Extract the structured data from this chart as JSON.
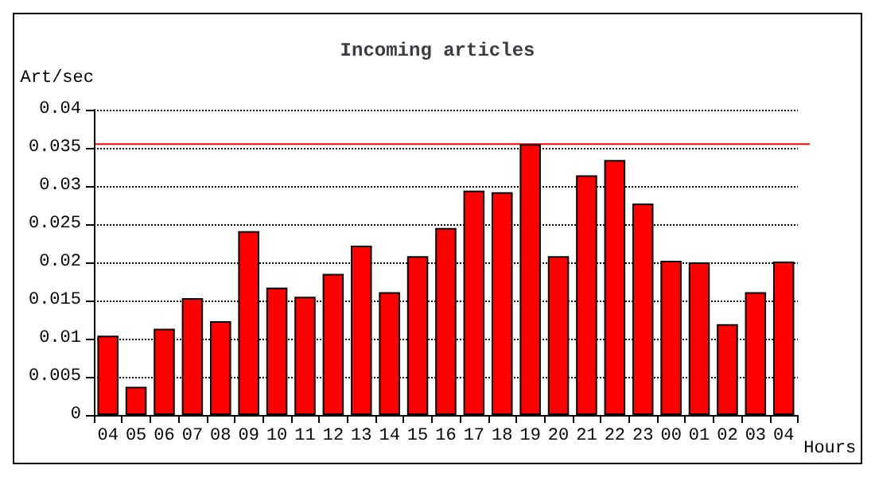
{
  "chart_data": {
    "type": "bar",
    "title": "Incoming articles",
    "ylabel": "Art/sec",
    "xlabel": "Hours",
    "categories": [
      "04",
      "05",
      "06",
      "07",
      "08",
      "09",
      "10",
      "11",
      "12",
      "13",
      "14",
      "15",
      "16",
      "17",
      "18",
      "19",
      "20",
      "21",
      "22",
      "23",
      "00",
      "01",
      "02",
      "03",
      "04"
    ],
    "values": [
      0.0104,
      0.0037,
      0.0113,
      0.0153,
      0.0123,
      0.0241,
      0.0167,
      0.0155,
      0.0185,
      0.0222,
      0.0161,
      0.0208,
      0.0245,
      0.0294,
      0.0292,
      0.0355,
      0.0208,
      0.0314,
      0.0334,
      0.0277,
      0.0202,
      0.02,
      0.0119,
      0.0161,
      0.0201
    ],
    "color": "#ff0000",
    "ylim": [
      0,
      0.04
    ],
    "yticks": [
      0,
      0.005,
      0.01,
      0.015,
      0.02,
      0.025,
      0.03,
      0.035,
      0.04
    ],
    "grid": "y",
    "line_style": "dotted",
    "ref_lines": [
      {
        "axis": "y",
        "value": 0.0355,
        "color": "#ff0000",
        "line_style": "solid"
      }
    ]
  }
}
